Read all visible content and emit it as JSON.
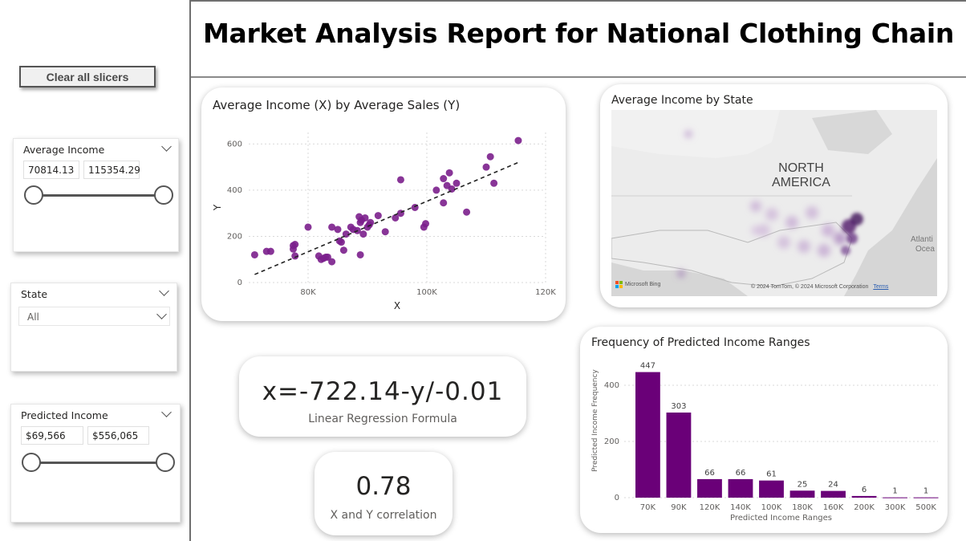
{
  "report": {
    "title": "Market Analysis Report for National Clothing Chain"
  },
  "buttons": {
    "clear_slicers": "Clear all slicers"
  },
  "slicers": {
    "avg_income": {
      "title": "Average Income",
      "min_value": "70814.13",
      "max_value": "115354.29"
    },
    "state": {
      "title": "State",
      "selected": "All"
    },
    "predicted_income": {
      "title": "Predicted Income",
      "min_value": "$69,566",
      "max_value": "$556,065"
    }
  },
  "scatter_card": {
    "title": "Average Income (X) by Average Sales (Y)"
  },
  "map_card": {
    "title": "Average Income by State",
    "region_label_line1": "NORTH",
    "region_label_line2": "AMERICA",
    "ocean_label_line1": "Atlanti",
    "ocean_label_line2": "Ocea",
    "provider": "Microsoft Bing",
    "copyright": "© 2024 TomTom, © 2024 Microsoft Corporation",
    "terms": "Terms"
  },
  "formula_card": {
    "value": "x=-722.14-y/-0.01",
    "label": "Linear Regression Formula"
  },
  "correlation_card": {
    "value": "0.78",
    "label": "X and Y correlation"
  },
  "bar_card": {
    "title": "Frequency of Predicted Income Ranges"
  },
  "colors": {
    "accent": "#6a0078",
    "scatter_point": "#7b1f8c",
    "bar": "#6a0078"
  },
  "chart_data": [
    {
      "type": "scatter",
      "title": "Average Income (X) by Average Sales (Y)",
      "xlabel": "X",
      "ylabel": "Y",
      "xlim": [
        70000,
        120000
      ],
      "ylim": [
        0,
        650
      ],
      "x_ticks": [
        80000,
        100000,
        120000
      ],
      "x_tick_labels": [
        "80K",
        "100K",
        "120K"
      ],
      "y_ticks": [
        0,
        200,
        400,
        600
      ],
      "y_tick_labels": [
        "0",
        "200",
        "400",
        "600"
      ],
      "grid": true,
      "trendline": {
        "x": [
          71000,
          115400
        ],
        "y": [
          35,
          520
        ]
      },
      "points": [
        [
          71000,
          120
        ],
        [
          73000,
          135
        ],
        [
          73700,
          135
        ],
        [
          77500,
          160
        ],
        [
          77500,
          145
        ],
        [
          77800,
          115
        ],
        [
          77800,
          165
        ],
        [
          80000,
          240
        ],
        [
          81800,
          115
        ],
        [
          82200,
          100
        ],
        [
          82600,
          105
        ],
        [
          83000,
          110
        ],
        [
          83300,
          110
        ],
        [
          84000,
          90
        ],
        [
          84000,
          240
        ],
        [
          85000,
          230
        ],
        [
          85300,
          180
        ],
        [
          85600,
          175
        ],
        [
          86000,
          140
        ],
        [
          86400,
          210
        ],
        [
          87200,
          240
        ],
        [
          87600,
          230
        ],
        [
          88300,
          225
        ],
        [
          88600,
          285
        ],
        [
          88800,
          120
        ],
        [
          88800,
          260
        ],
        [
          89000,
          270
        ],
        [
          89300,
          210
        ],
        [
          89600,
          280
        ],
        [
          90000,
          240
        ],
        [
          90300,
          250
        ],
        [
          90500,
          260
        ],
        [
          91800,
          290
        ],
        [
          93000,
          220
        ],
        [
          94700,
          280
        ],
        [
          95600,
          300
        ],
        [
          95600,
          445
        ],
        [
          98000,
          325
        ],
        [
          99500,
          240
        ],
        [
          99800,
          255
        ],
        [
          101600,
          400
        ],
        [
          102800,
          450
        ],
        [
          102800,
          345
        ],
        [
          103400,
          420
        ],
        [
          103800,
          475
        ],
        [
          104200,
          405
        ],
        [
          105000,
          430
        ],
        [
          106700,
          305
        ],
        [
          110000,
          500
        ],
        [
          110700,
          545
        ],
        [
          111300,
          430
        ],
        [
          115400,
          615
        ]
      ]
    },
    {
      "type": "bar",
      "title": "Frequency of Predicted Income Ranges",
      "xlabel": "Predicted Income Ranges",
      "ylabel": "Predicted Income Frequency",
      "categories": [
        "70K",
        "90K",
        "120K",
        "140K",
        "100K",
        "180K",
        "160K",
        "200K",
        "300K",
        "500K"
      ],
      "values": [
        447,
        303,
        66,
        66,
        61,
        25,
        24,
        6,
        1,
        1
      ],
      "ylim": [
        0,
        480
      ],
      "y_ticks": [
        0,
        200,
        400
      ],
      "grid": true
    }
  ]
}
